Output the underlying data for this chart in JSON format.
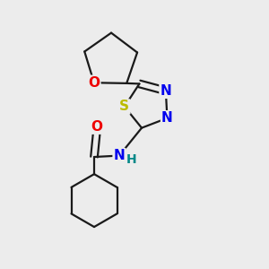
{
  "background_color": "#ececec",
  "bond_color": "#1a1a1a",
  "bond_width": 1.6,
  "atom_colors": {
    "O": "#ee0000",
    "N": "#0000ee",
    "S": "#bbbb00",
    "H": "#008888"
  },
  "font_size": 11
}
